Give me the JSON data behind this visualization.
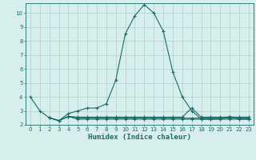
{
  "xlabel": "Humidex (Indice chaleur)",
  "background_color": "#d6eeec",
  "grid_color": "#b8d4d2",
  "line_color": "#1a6b6b",
  "xlim": [
    -0.5,
    23.5
  ],
  "ylim": [
    2.0,
    10.7
  ],
  "yticks": [
    2,
    3,
    4,
    5,
    6,
    7,
    8,
    9,
    10
  ],
  "xticks": [
    0,
    1,
    2,
    3,
    4,
    5,
    6,
    7,
    8,
    9,
    10,
    11,
    12,
    13,
    14,
    15,
    16,
    17,
    18,
    19,
    20,
    21,
    22,
    23
  ],
  "series": [
    {
      "x": [
        0,
        1,
        2,
        3,
        4,
        5,
        6,
        7,
        8,
        9,
        10,
        11,
        12,
        13,
        14,
        15,
        16,
        17,
        18,
        19,
        20,
        21,
        22,
        23
      ],
      "y": [
        4.0,
        3.0,
        2.5,
        2.3,
        2.8,
        3.0,
        3.2,
        3.2,
        3.5,
        5.2,
        8.5,
        9.8,
        10.6,
        10.0,
        8.7,
        5.8,
        4.0,
        3.0,
        2.4,
        2.4,
        2.4,
        2.6,
        2.4,
        2.4
      ]
    },
    {
      "x": [
        2,
        3,
        4,
        5,
        6,
        7,
        8,
        9,
        10,
        11,
        12,
        13,
        14,
        15,
        16,
        17,
        18,
        19,
        20,
        21,
        22,
        23
      ],
      "y": [
        2.5,
        2.3,
        2.6,
        2.55,
        2.55,
        2.55,
        2.55,
        2.55,
        2.55,
        2.55,
        2.55,
        2.55,
        2.55,
        2.55,
        2.55,
        3.2,
        2.55,
        2.55,
        2.55,
        2.55,
        2.55,
        2.55
      ]
    },
    {
      "x": [
        2,
        3,
        4,
        5,
        6,
        7,
        8,
        9,
        10,
        11,
        12,
        13,
        14,
        15,
        16,
        17,
        18,
        19,
        20,
        21,
        22,
        23
      ],
      "y": [
        2.5,
        2.3,
        2.6,
        2.48,
        2.48,
        2.48,
        2.48,
        2.48,
        2.48,
        2.48,
        2.48,
        2.48,
        2.48,
        2.48,
        2.48,
        2.48,
        2.48,
        2.48,
        2.48,
        2.48,
        2.48,
        2.48
      ]
    },
    {
      "x": [
        2,
        3,
        4,
        5,
        6,
        7,
        8,
        9,
        10,
        11,
        12,
        13,
        14,
        15,
        16,
        17,
        18,
        19,
        20,
        21,
        22,
        23
      ],
      "y": [
        2.5,
        2.3,
        2.6,
        2.4,
        2.4,
        2.4,
        2.4,
        2.4,
        2.4,
        2.4,
        2.4,
        2.4,
        2.4,
        2.4,
        2.4,
        2.4,
        2.4,
        2.4,
        2.4,
        2.4,
        2.4,
        2.4
      ]
    }
  ]
}
